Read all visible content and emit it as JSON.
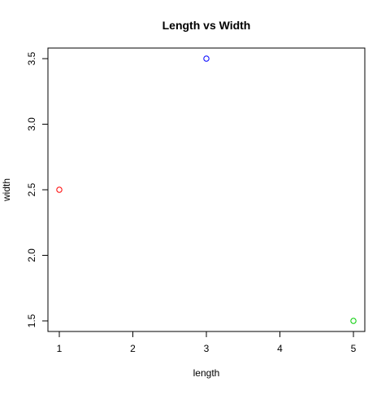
{
  "chart_data": {
    "type": "scatter",
    "title": "Length vs Width",
    "xlabel": "length",
    "ylabel": "width",
    "xlim": [
      1,
      5
    ],
    "ylim": [
      1.5,
      3.5
    ],
    "xticks": [
      1,
      2,
      3,
      4,
      5
    ],
    "xtick_labels": [
      "1",
      "2",
      "3",
      "4",
      "5"
    ],
    "yticks": [
      1.5,
      2.0,
      2.5,
      3.0,
      3.5
    ],
    "ytick_labels": [
      "1.5",
      "2.0",
      "2.5",
      "3.0",
      "3.5"
    ],
    "grid": false,
    "legend": "none",
    "points": [
      {
        "x": 1,
        "y": 2.5,
        "color": "#ff0000"
      },
      {
        "x": 3,
        "y": 3.5,
        "color": "#0000ff"
      },
      {
        "x": 5,
        "y": 1.5,
        "color": "#00cd00"
      }
    ]
  }
}
